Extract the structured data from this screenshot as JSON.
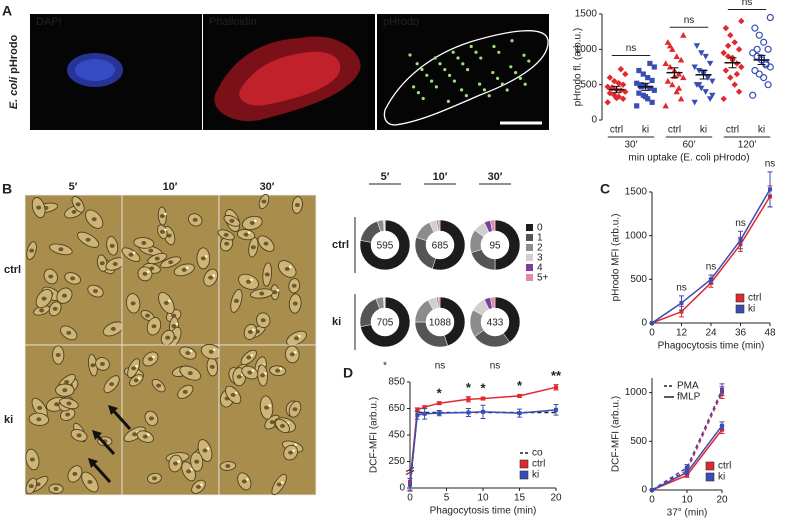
{
  "panel_labels": [
    "A",
    "B",
    "C",
    "D"
  ],
  "micrographs_a": {
    "row_label": [
      "E. coli",
      "pHrodo"
    ],
    "channels": [
      {
        "label": "DAPI",
        "color": "#3b5bdb"
      },
      {
        "label": "Phalloidin",
        "color": "#e2323c"
      },
      {
        "label": "pHrodo",
        "color": "#8fd16a"
      }
    ]
  },
  "micrographs_b": {
    "columns": [
      "5′",
      "10′",
      "30′"
    ],
    "rows": [
      "ctrl",
      "ki"
    ]
  },
  "chart_data": [
    {
      "type": "strip",
      "y_label": "pHrodo fl. (arb.u.)",
      "x_label": "min uptake (E. coli pHrodo)",
      "ylim": [
        0,
        1500
      ],
      "yticks": [
        0,
        500,
        1000,
        1500
      ],
      "categories": [
        "ctrl",
        "ki",
        "ctrl",
        "ki",
        "ctrl",
        "ki"
      ],
      "groups": [
        "30′",
        "60′",
        "120′"
      ],
      "annotations": [
        "ns",
        "ns",
        "ns"
      ],
      "colors": [
        "#e0282e",
        "#3a4db5",
        "#e0282e",
        "#3a4db5",
        "#e0282e",
        "#3a4db5"
      ],
      "markers": [
        "diamond",
        "square",
        "triangle",
        "triangle-down",
        "diamond",
        "circle-open"
      ],
      "points": [
        [
          250,
          300,
          330,
          350,
          380,
          400,
          420,
          430,
          450,
          470,
          500,
          520,
          550,
          600,
          650,
          720,
          310,
          460
        ],
        [
          200,
          250,
          300,
          350,
          380,
          420,
          450,
          480,
          500,
          520,
          560,
          600,
          650,
          700,
          750,
          800,
          330,
          470
        ],
        [
          200,
          300,
          400,
          500,
          550,
          600,
          650,
          700,
          750,
          800,
          850,
          900,
          1000,
          1100,
          1200,
          450,
          620,
          1050
        ],
        [
          250,
          300,
          400,
          450,
          500,
          550,
          600,
          650,
          700,
          750,
          800,
          900,
          950,
          1050,
          350,
          600,
          680,
          500
        ],
        [
          300,
          400,
          500,
          600,
          700,
          750,
          800,
          850,
          900,
          950,
          1000,
          1100,
          1200,
          1300,
          1400,
          650,
          880,
          1050
        ],
        [
          350,
          500,
          600,
          650,
          700,
          750,
          800,
          850,
          900,
          950,
          1000,
          1100,
          1200,
          1300,
          1450,
          780,
          880,
          1000
        ]
      ],
      "means": [
        430,
        470,
        670,
        640,
        810,
        850
      ],
      "sems": [
        45,
        50,
        70,
        60,
        70,
        65
      ]
    },
    {
      "type": "donut",
      "columns": [
        "5′",
        "10′",
        "30′"
      ],
      "rows": [
        "ctrl",
        "ki"
      ],
      "legend": [
        {
          "label": "0",
          "color": "#1c1c1c"
        },
        {
          "label": "1",
          "color": "#555555"
        },
        {
          "label": "2",
          "color": "#8c8c8c"
        },
        {
          "label": "3",
          "color": "#d0d0d0"
        },
        {
          "label": "4",
          "color": "#7b3fa0"
        },
        {
          "label": "5+",
          "color": "#e28aa8"
        }
      ],
      "charts": [
        {
          "center": 595,
          "values": [
            78,
            17,
            4,
            1,
            0,
            0
          ]
        },
        {
          "center": 685,
          "values": [
            55,
            25,
            13,
            5,
            1,
            1
          ]
        },
        {
          "center": 95,
          "values": [
            50,
            20,
            15,
            8,
            4,
            3
          ]
        },
        {
          "center": 705,
          "values": [
            72,
            22,
            5,
            1,
            0,
            0
          ]
        },
        {
          "center": 1088,
          "values": [
            45,
            30,
            17,
            6,
            1,
            1
          ]
        },
        {
          "center": 433,
          "values": [
            40,
            25,
            18,
            10,
            4,
            3
          ]
        }
      ],
      "significance": [
        "*",
        "ns",
        "ns"
      ]
    },
    {
      "type": "line",
      "y_label": "pHrodo MFI (arb.u.)",
      "x_label": "Phagocytosis time (min)",
      "x": [
        0,
        12,
        24,
        36,
        48
      ],
      "xlim": [
        0,
        48
      ],
      "xticks": [
        0,
        12,
        24,
        36,
        48
      ],
      "ylim": [
        0,
        1500
      ],
      "yticks": [
        0,
        500,
        1000,
        1500
      ],
      "series": [
        {
          "name": "ctrl",
          "color": "#e0282e",
          "dash": "solid",
          "values": [
            0,
            130,
            460,
            900,
            1450
          ],
          "errors": [
            0,
            60,
            50,
            80,
            120
          ]
        },
        {
          "name": "ki",
          "color": "#3a4db5",
          "dash": "solid",
          "values": [
            0,
            230,
            500,
            950,
            1530
          ],
          "errors": [
            0,
            80,
            50,
            100,
            200
          ]
        }
      ],
      "annotations": [
        null,
        "ns",
        "ns",
        "ns",
        "ns"
      ]
    },
    {
      "type": "line",
      "y_label": "DCF-MFI (arb.u.)",
      "x_label": "37° (min)",
      "x": [
        0,
        10,
        20
      ],
      "xlim": [
        0,
        20
      ],
      "xticks": [
        0,
        10,
        20
      ],
      "ylim": [
        0,
        1150
      ],
      "yticks": [
        0,
        500,
        1000
      ],
      "style_legend": [
        {
          "label": "PMA",
          "dash": "dashed"
        },
        {
          "label": "fMLP",
          "dash": "solid"
        }
      ],
      "series": [
        {
          "name": "ctrl",
          "color": "#e0282e",
          "dash": "dashed",
          "values": [
            0,
            200,
            1000
          ],
          "errors": [
            0,
            30,
            60
          ]
        },
        {
          "name": "ki",
          "color": "#3a4db5",
          "dash": "dashed",
          "values": [
            0,
            230,
            1030
          ],
          "errors": [
            0,
            30,
            60
          ]
        },
        {
          "name": "ctrl",
          "color": "#e0282e",
          "dash": "solid",
          "values": [
            0,
            150,
            620
          ],
          "errors": [
            0,
            20,
            40
          ]
        },
        {
          "name": "ki",
          "color": "#3a4db5",
          "dash": "solid",
          "values": [
            0,
            180,
            660
          ],
          "errors": [
            0,
            20,
            40
          ]
        }
      ]
    },
    {
      "type": "line",
      "y_label": "DCF-MFI (arb.u.)",
      "x_label": "Phagocytosis time (min)",
      "x": [
        0,
        1,
        2,
        4,
        8,
        10,
        15,
        20
      ],
      "xlim": [
        0,
        20
      ],
      "xticks": [
        0,
        5,
        10,
        15,
        20
      ],
      "ylim": [
        0,
        850
      ],
      "yticks": [
        0,
        250,
        450,
        650,
        850
      ],
      "axis_break": 250,
      "series": [
        {
          "name": "co",
          "color": "#222222",
          "dash": "dashed",
          "legend": "line",
          "values": [
            0,
            620,
            620,
            620,
            620,
            620,
            620,
            620
          ]
        },
        {
          "name": "ctrl",
          "color": "#e0282e",
          "dash": "solid",
          "values": [
            60,
            640,
            660,
            690,
            720,
            725,
            745,
            810
          ],
          "errors": [
            80,
            15,
            10,
            10,
            20,
            10,
            10,
            20
          ]
        },
        {
          "name": "ki",
          "color": "#3a4db5",
          "dash": "solid",
          "values": [
            30,
            600,
            610,
            615,
            620,
            625,
            615,
            640
          ],
          "errors": [
            60,
            30,
            40,
            20,
            30,
            50,
            30,
            40
          ]
        }
      ],
      "annotations": [
        null,
        null,
        null,
        "*",
        "*",
        "*",
        "*",
        "**"
      ]
    }
  ]
}
